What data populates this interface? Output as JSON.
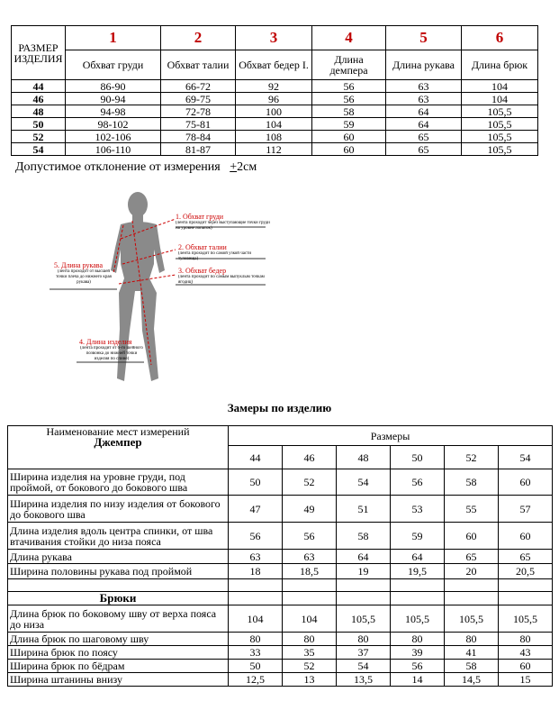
{
  "size_table": {
    "corner": "РАЗМЕР ИЗДЕЛИЯ",
    "numbers": [
      "1",
      "2",
      "3",
      "4",
      "5",
      "6"
    ],
    "columns": [
      "Обхват груди",
      "Обхват талии",
      "Обхват бедер I.",
      "Длина демпера",
      "Длина рукава",
      "Длина брюк"
    ],
    "rows": [
      [
        "44",
        "86-90",
        "66-72",
        "92",
        "56",
        "63",
        "104"
      ],
      [
        "46",
        "90-94",
        "69-75",
        "96",
        "56",
        "63",
        "104"
      ],
      [
        "48",
        "94-98",
        "72-78",
        "100",
        "58",
        "64",
        "105,5"
      ],
      [
        "50",
        "98-102",
        "75-81",
        "104",
        "59",
        "64",
        "105,5"
      ],
      [
        "52",
        "102-106",
        "78-84",
        "108",
        "60",
        "65",
        "105,5"
      ],
      [
        "54",
        "106-110",
        "81-87",
        "112",
        "60",
        "65",
        "105,5"
      ]
    ]
  },
  "tolerance": {
    "text": "Допустимое отклонение от измерения",
    "sign": "+",
    "value": "2см"
  },
  "figure": {
    "labels": [
      {
        "title": "1. Обхват груди",
        "note": "(лента проходит через выступающие точки груди на уровне лопаток)"
      },
      {
        "title": "2. Обхват талии",
        "note": "(лента проходит по самой узкой части туловища)"
      },
      {
        "title": "3. Обхват бедер",
        "note": "(лента проходит по самым выпуклым точкам ягодиц)"
      },
      {
        "title": "5. Длина рукава",
        "note": "(лента проходит от высшей точки плеча до нижнего края рукава)"
      },
      {
        "title": "4. Длина изделия",
        "note": "(лента проходит от 6-го шейного позвонка до нижней точки изделия по спине)"
      }
    ]
  },
  "measure_title": "Замеры по изделию",
  "measure_table": {
    "name_header": "Наименование мест измерений",
    "sizes_header": "Размеры",
    "sizes": [
      "44",
      "46",
      "48",
      "50",
      "52",
      "54"
    ],
    "sections": [
      {
        "title": "Джемпер",
        "rows": [
          [
            "Ширина изделия на уровне груди, под проймой, от бокового до бокового шва",
            "50",
            "52",
            "54",
            "56",
            "58",
            "60"
          ],
          [
            "Ширина изделия по низу изделия от бокового до бокового шва",
            "47",
            "49",
            "51",
            "53",
            "55",
            "57"
          ],
          [
            "Длина изделия вдоль центра спинки, от шва втачивания стойки до низа пояса",
            "56",
            "56",
            "58",
            "59",
            "60",
            "60"
          ],
          [
            "Длина рукава",
            "63",
            "63",
            "64",
            "64",
            "65",
            "65"
          ],
          [
            "Ширина половины рукава под проймой",
            "18",
            "18,5",
            "19",
            "19,5",
            "20",
            "20,5"
          ]
        ]
      },
      {
        "title": "Брюки",
        "rows": [
          [
            "Длина брюк по боковому шву от верха пояса до низа",
            "104",
            "104",
            "105,5",
            "105,5",
            "105,5",
            "105,5"
          ],
          [
            "Длина брюк по шаговому шву",
            "80",
            "80",
            "80",
            "80",
            "80",
            "80"
          ],
          [
            "Ширина брюк по поясу",
            "33",
            "35",
            "37",
            "39",
            "41",
            "43"
          ],
          [
            "Ширина брюк по бёдрам",
            "50",
            "52",
            "54",
            "56",
            "58",
            "60"
          ],
          [
            "Ширина штанины внизу",
            "12,5",
            "13",
            "13,5",
            "14",
            "14,5",
            "15"
          ]
        ]
      }
    ]
  }
}
